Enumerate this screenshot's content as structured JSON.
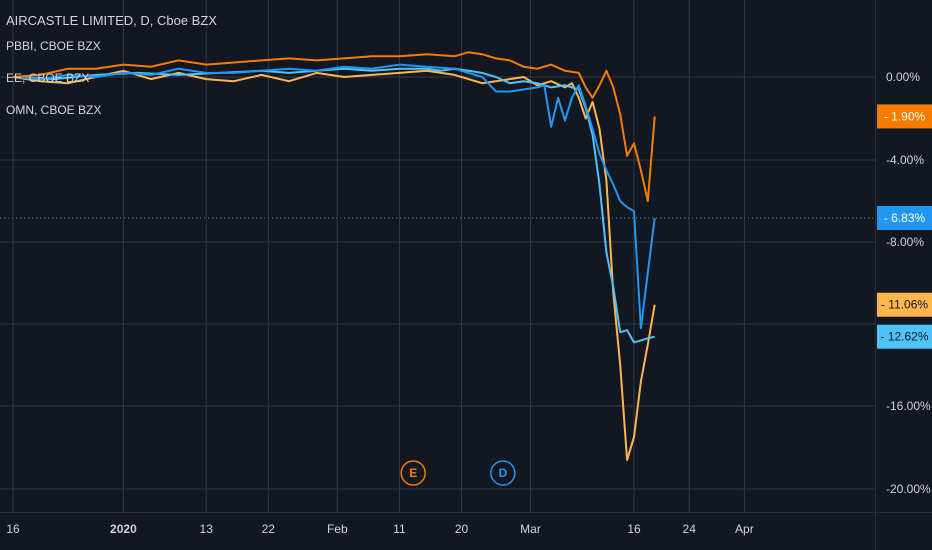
{
  "legend": {
    "main": "AIRCASTLE LIMITED, D, Cboe BZX",
    "comparisons": [
      "PBBI, CBOE BZX",
      "EE, CBOE BZX",
      "OMN, CBOE BZX"
    ]
  },
  "colors": {
    "background": "#131722",
    "grid": "#363a45",
    "text": "#d1d4dc",
    "main": "#4fc3f7",
    "pbbi": "#f57c00",
    "ee": "#2196f3",
    "omn": "#ffb74d",
    "crosshair": "#2196f3"
  },
  "chart_data": {
    "type": "line",
    "title": "AIRCASTLE LIMITED, D, Cboe BZX",
    "x_ticks": [
      {
        "label": "16",
        "day": 0
      },
      {
        "label": "2020",
        "day": 16,
        "bold": true
      },
      {
        "label": "13",
        "day": 28
      },
      {
        "label": "22",
        "day": 37
      },
      {
        "label": "Feb",
        "day": 47
      },
      {
        "label": "11",
        "day": 56
      },
      {
        "label": "20",
        "day": 65
      },
      {
        "label": "Mar",
        "day": 75
      },
      {
        "label": "16",
        "day": 90
      },
      {
        "label": "24",
        "day": 98
      },
      {
        "label": "Apr",
        "day": 106
      }
    ],
    "y_ticks": [
      "0.00%",
      "-4.00%",
      "-8.00%",
      "-16.00%",
      "-20.00%"
    ],
    "y_tick_values": [
      0,
      -4,
      -8,
      -16,
      -20
    ],
    "ylim": [
      1.8,
      -21
    ],
    "grid": true,
    "series": [
      {
        "key": "main",
        "color": "#4fc3f7",
        "last_label": "-12.62%",
        "last_value": -12.62,
        "x": [
          0,
          6,
          12,
          18,
          24,
          30,
          36,
          40,
          44,
          48,
          52,
          56,
          60,
          62,
          64,
          66,
          68,
          70,
          72,
          74,
          76,
          78,
          80,
          82,
          83,
          84,
          85,
          86,
          87,
          88,
          89,
          90,
          91,
          92,
          93
        ],
        "y": [
          0,
          -0.1,
          0.1,
          0.2,
          0.1,
          0.2,
          0.3,
          0.2,
          0.3,
          0.4,
          0.3,
          0.4,
          0.4,
          0.3,
          0.4,
          0.3,
          0.2,
          0,
          -0.3,
          -0.2,
          -0.3,
          -0.5,
          -0.4,
          -0.6,
          -1.5,
          -2.8,
          -5.2,
          -8.5,
          -10.2,
          -12.4,
          -12.3,
          -12.9,
          -12.8,
          -12.7,
          -12.62
        ]
      },
      {
        "key": "pbbi",
        "color": "#f57c00",
        "last_label": "-1.90%",
        "last_value": -1.9,
        "x": [
          0,
          4,
          8,
          12,
          16,
          20,
          24,
          28,
          32,
          36,
          40,
          44,
          48,
          52,
          56,
          60,
          64,
          66,
          68,
          70,
          72,
          74,
          76,
          78,
          80,
          82,
          83,
          84,
          85,
          86,
          87,
          88,
          89,
          90,
          91,
          92,
          93
        ],
        "y": [
          0,
          0.1,
          0.4,
          0.4,
          0.6,
          0.5,
          0.8,
          0.6,
          0.7,
          0.8,
          0.9,
          0.8,
          0.9,
          1.0,
          1.0,
          1.1,
          1.0,
          1.2,
          1.1,
          0.9,
          0.8,
          0.5,
          0.4,
          0.6,
          0.3,
          0.2,
          -0.5,
          -1.0,
          -0.4,
          0.3,
          -0.5,
          -1.8,
          -3.8,
          -3.2,
          -4.5,
          -6,
          -1.9
        ]
      },
      {
        "key": "ee",
        "color": "#2196f3",
        "last_label": "-6.83%",
        "last_value": -6.83,
        "x": [
          0,
          4,
          8,
          12,
          16,
          20,
          24,
          28,
          32,
          36,
          40,
          44,
          48,
          52,
          56,
          60,
          64,
          66,
          68,
          70,
          72,
          74,
          76,
          77,
          78,
          79,
          80,
          81,
          82,
          83,
          84,
          85,
          86,
          87,
          88,
          89,
          90,
          91,
          92,
          93
        ],
        "y": [
          0,
          -0.1,
          0.1,
          0,
          0.2,
          0.1,
          0.4,
          0.2,
          0.2,
          0.3,
          0.4,
          0.3,
          0.5,
          0.4,
          0.6,
          0.5,
          0.4,
          0.2,
          0,
          -0.7,
          -0.7,
          -0.6,
          -0.5,
          -0.4,
          -2.4,
          -1.0,
          -2.1,
          -1.0,
          -0.4,
          -1.4,
          -2.5,
          -3.7,
          -4.5,
          -5.2,
          -6,
          -6.3,
          -6.5,
          -12.2,
          -9.5,
          -6.83
        ]
      },
      {
        "key": "omn",
        "color": "#ffb74d",
        "last_label": "-11.06%",
        "last_value": -11.06,
        "x": [
          0,
          4,
          8,
          12,
          16,
          20,
          24,
          28,
          32,
          36,
          40,
          44,
          48,
          52,
          56,
          60,
          64,
          66,
          68,
          70,
          72,
          74,
          76,
          78,
          80,
          81,
          82,
          83,
          84,
          85,
          86,
          87,
          88,
          89,
          90,
          91,
          92,
          93
        ],
        "y": [
          0,
          -0.2,
          -0.3,
          0,
          0.3,
          -0.1,
          0.2,
          -0.1,
          -0.2,
          0.1,
          -0.2,
          0.2,
          0,
          0.1,
          0.2,
          0.3,
          0.1,
          -0.1,
          -0.3,
          -0.2,
          -0.1,
          0,
          -0.4,
          -0.2,
          -0.5,
          -0.3,
          -1.0,
          -2.0,
          -1.2,
          -2.5,
          -5,
          -10.5,
          -14,
          -18.6,
          -17.5,
          -14.8,
          -13,
          -11.06
        ]
      }
    ],
    "markers": [
      {
        "label": "E",
        "day": 58,
        "color": "#f57c00"
      },
      {
        "label": "D",
        "day": 71,
        "color": "#2196f3"
      }
    ]
  }
}
